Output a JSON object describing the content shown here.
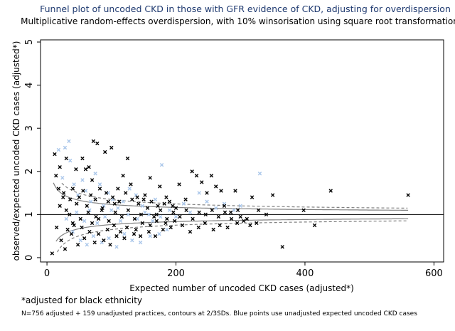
{
  "chart_data": {
    "type": "scatter",
    "title": "Funnel plot of uncoded CKD in those with GFR evidence of CKD, adjusting for overdispersion",
    "subtitle": "Multiplicative random-effects overdispersion, with 10% winsorisation using square root transformation",
    "xlabel": "Expected number of uncoded CKD cases (adjusted*)",
    "ylabel": "observed/expected uncoded CKD cases (adjusted*)",
    "note": "*adjusted for black ethnicity",
    "footnote": "N=756 adjusted + 159 unadjusted practices, contours at 2/3SDs. Blue points use unadjusted expected uncoded CKD cases",
    "xlim": [
      -10,
      615
    ],
    "ylim": [
      -0.1,
      5.05
    ],
    "x_ticks": [
      0,
      200,
      400,
      600
    ],
    "y_ticks": [
      0,
      1,
      2,
      3,
      4,
      5
    ],
    "reference_line": 1,
    "grid": false,
    "colors": {
      "adjusted": "#000000",
      "unadjusted": "#a9c6ea",
      "contour": "#808080",
      "title": "#1f3a70"
    },
    "series": [
      {
        "name": "adjusted",
        "marker": "x",
        "points": [
          [
            12,
            2.4
          ],
          [
            14,
            1.9
          ],
          [
            18,
            1.6
          ],
          [
            20,
            2.1
          ],
          [
            25,
            1.4
          ],
          [
            30,
            2.3
          ],
          [
            35,
            1.0
          ],
          [
            40,
            1.6
          ],
          [
            45,
            2.05
          ],
          [
            50,
            1.4
          ],
          [
            55,
            2.3
          ],
          [
            60,
            2.05
          ],
          [
            62,
            1.2
          ],
          [
            65,
            2.1
          ],
          [
            70,
            1.8
          ],
          [
            72,
            2.7
          ],
          [
            75,
            1.35
          ],
          [
            78,
            2.65
          ],
          [
            80,
            0.9
          ],
          [
            85,
            1.1
          ],
          [
            90,
            2.45
          ],
          [
            95,
            1.3
          ],
          [
            100,
            2.55
          ],
          [
            105,
            1.25
          ],
          [
            110,
            1.6
          ],
          [
            118,
            1.9
          ],
          [
            125,
            2.3
          ],
          [
            130,
            1.7
          ],
          [
            140,
            1.4
          ],
          [
            150,
            1.35
          ],
          [
            160,
            1.85
          ],
          [
            170,
            1.0
          ],
          [
            175,
            1.65
          ],
          [
            185,
            1.4
          ],
          [
            195,
            1.2
          ],
          [
            205,
            1.7
          ],
          [
            215,
            1.35
          ],
          [
            225,
            2.0
          ],
          [
            232,
            1.9
          ],
          [
            240,
            1.75
          ],
          [
            248,
            1.5
          ],
          [
            255,
            1.9
          ],
          [
            262,
            1.65
          ],
          [
            270,
            1.55
          ],
          [
            275,
            1.2
          ],
          [
            285,
            1.05
          ],
          [
            292,
            1.55
          ],
          [
            300,
            0.95
          ],
          [
            310,
            0.9
          ],
          [
            318,
            1.4
          ],
          [
            328,
            1.1
          ],
          [
            340,
            1.0
          ],
          [
            350,
            1.45
          ],
          [
            365,
            0.25
          ],
          [
            415,
            0.75
          ],
          [
            398,
            1.1
          ],
          [
            440,
            1.55
          ],
          [
            560,
            1.45
          ],
          [
            8,
            0.1
          ],
          [
            15,
            0.7
          ],
          [
            22,
            0.4
          ],
          [
            28,
            0.2
          ],
          [
            38,
            0.55
          ],
          [
            48,
            0.3
          ],
          [
            58,
            0.45
          ],
          [
            66,
            0.6
          ],
          [
            74,
            0.35
          ],
          [
            88,
            0.4
          ],
          [
            98,
            0.3
          ],
          [
            108,
            0.5
          ],
          [
            120,
            0.45
          ],
          [
            135,
            0.55
          ],
          [
            145,
            0.5
          ],
          [
            158,
            0.6
          ],
          [
            168,
            0.5
          ],
          [
            180,
            0.65
          ],
          [
            192,
            0.7
          ],
          [
            210,
            0.75
          ],
          [
            222,
            0.6
          ],
          [
            235,
            0.7
          ],
          [
            245,
            0.8
          ],
          [
            258,
            0.65
          ],
          [
            268,
            0.75
          ],
          [
            280,
            0.7
          ],
          [
            295,
            0.8
          ],
          [
            305,
            0.85
          ],
          [
            315,
            0.75
          ],
          [
            325,
            0.8
          ],
          [
            20,
            1.2
          ],
          [
            30,
            1.1
          ],
          [
            40,
            0.8
          ],
          [
            52,
            0.9
          ],
          [
            64,
            1.05
          ],
          [
            76,
            0.95
          ],
          [
            86,
            1.15
          ],
          [
            96,
            0.85
          ],
          [
            106,
            1.05
          ],
          [
            116,
            0.95
          ],
          [
            126,
            1.1
          ],
          [
            136,
            0.9
          ],
          [
            146,
            1.0
          ],
          [
            156,
            1.15
          ],
          [
            166,
            0.95
          ],
          [
            176,
            1.1
          ],
          [
            186,
            0.9
          ],
          [
            196,
            1.05
          ],
          [
            206,
            0.95
          ],
          [
            216,
            1.1
          ],
          [
            226,
            0.9
          ],
          [
            236,
            1.05
          ],
          [
            246,
            1.0
          ],
          [
            256,
            1.1
          ],
          [
            266,
            0.95
          ],
          [
            276,
            1.05
          ],
          [
            286,
            0.9
          ],
          [
            296,
            1.1
          ],
          [
            26,
            1.5
          ],
          [
            36,
            1.35
          ],
          [
            46,
            1.25
          ],
          [
            56,
            1.55
          ],
          [
            68,
            1.45
          ],
          [
            82,
            1.6
          ],
          [
            92,
            1.5
          ],
          [
            102,
            1.4
          ],
          [
            112,
            1.3
          ],
          [
            122,
            1.5
          ],
          [
            132,
            1.35
          ],
          [
            142,
            1.25
          ],
          [
            152,
            1.45
          ],
          [
            162,
            1.3
          ],
          [
            172,
            1.2
          ],
          [
            182,
            1.25
          ],
          [
            190,
            1.3
          ],
          [
            200,
            1.15
          ],
          [
            32,
            0.65
          ],
          [
            42,
            0.75
          ],
          [
            54,
            0.7
          ],
          [
            70,
            0.8
          ],
          [
            80,
            0.55
          ],
          [
            94,
            0.65
          ],
          [
            104,
            0.75
          ],
          [
            114,
            0.6
          ],
          [
            124,
            0.7
          ],
          [
            138,
            0.65
          ],
          [
            148,
            0.8
          ],
          [
            160,
            0.75
          ],
          [
            170,
            0.85
          ],
          [
            184,
            0.8
          ],
          [
            198,
            0.85
          ]
        ]
      },
      {
        "name": "unadjusted",
        "marker": "x",
        "points": [
          [
            18,
            2.5
          ],
          [
            24,
            1.85
          ],
          [
            28,
            2.55
          ],
          [
            34,
            2.7
          ],
          [
            36,
            2.25
          ],
          [
            42,
            1.7
          ],
          [
            48,
            1.45
          ],
          [
            55,
            1.8
          ],
          [
            60,
            1.55
          ],
          [
            68,
            1.3
          ],
          [
            75,
            1.95
          ],
          [
            82,
            1.7
          ],
          [
            88,
            1.2
          ],
          [
            95,
            1.5
          ],
          [
            102,
            1.35
          ],
          [
            110,
            1.15
          ],
          [
            118,
            1.3
          ],
          [
            128,
            1.6
          ],
          [
            138,
            1.45
          ],
          [
            148,
            1.2
          ],
          [
            158,
            1.0
          ],
          [
            168,
            1.35
          ],
          [
            178,
            2.15
          ],
          [
            190,
            1.1
          ],
          [
            200,
            0.95
          ],
          [
            212,
            1.25
          ],
          [
            222,
            1.05
          ],
          [
            236,
            1.5
          ],
          [
            248,
            1.3
          ],
          [
            262,
            1.15
          ],
          [
            275,
            1.25
          ],
          [
            290,
            1.1
          ],
          [
            300,
            1.2
          ],
          [
            330,
            1.95
          ],
          [
            40,
            0.6
          ],
          [
            52,
            0.4
          ],
          [
            62,
            0.3
          ],
          [
            72,
            0.5
          ],
          [
            85,
            0.35
          ],
          [
            96,
            0.45
          ],
          [
            108,
            0.25
          ],
          [
            120,
            0.55
          ],
          [
            132,
            0.4
          ],
          [
            145,
            0.35
          ],
          [
            160,
            0.5
          ],
          [
            174,
            0.55
          ],
          [
            186,
            0.65
          ],
          [
            30,
            0.9
          ],
          [
            46,
            1.05
          ],
          [
            58,
            0.85
          ],
          [
            66,
            1.1
          ],
          [
            78,
            0.8
          ],
          [
            90,
            0.95
          ],
          [
            100,
            1.1
          ],
          [
            114,
            0.85
          ],
          [
            126,
            1.0
          ],
          [
            140,
            0.9
          ],
          [
            152,
            1.05
          ],
          [
            164,
            0.85
          ],
          [
            176,
            0.95
          ]
        ]
      }
    ]
  }
}
